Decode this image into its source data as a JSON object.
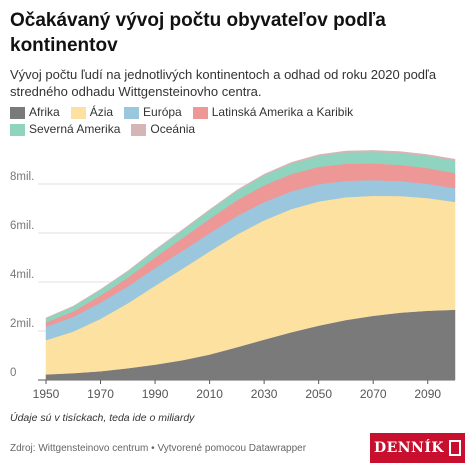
{
  "title": "Očakávaný vývoj počtu obyvateľov podľa kontinentov",
  "subtitle": "Vývoj počtu ľudí na jednotlivých kontinentoch a odhad od roku 2020 podľa stredného odhadu Wittgensteinovho centra.",
  "note": "Údaje sú v tisíckach, teda ide o miliardy",
  "source": "Zdroj: Wittgensteinovo centrum • Vytvorené pomocou Datawrapper",
  "logo": "DENNÍK",
  "chart_data": {
    "type": "area",
    "stacked": true,
    "title": "Očakávaný vývoj počtu obyvateľov podľa kontinentov",
    "x": [
      1950,
      1960,
      1970,
      1980,
      1990,
      2000,
      2010,
      2020,
      2030,
      2040,
      2050,
      2060,
      2070,
      2080,
      2090,
      2100
    ],
    "xticks": [
      1950,
      1970,
      1990,
      2010,
      2030,
      2050,
      2070,
      2090
    ],
    "yticks": [
      {
        "value": 0,
        "label": "0"
      },
      {
        "value": 2,
        "label": "2mil."
      },
      {
        "value": 4,
        "label": "4mil."
      },
      {
        "value": 6,
        "label": "6mil."
      },
      {
        "value": 8,
        "label": "8mil."
      }
    ],
    "ylim": [
      0,
      10
    ],
    "legend_position": "top",
    "series": [
      {
        "name": "Afrika",
        "color": "#7a7a7a",
        "values": [
          0.23,
          0.28,
          0.36,
          0.48,
          0.63,
          0.81,
          1.04,
          1.34,
          1.65,
          1.95,
          2.22,
          2.45,
          2.62,
          2.75,
          2.83,
          2.87
        ]
      },
      {
        "name": "Ázia",
        "color": "#fce1a0",
        "values": [
          1.4,
          1.7,
          2.14,
          2.65,
          3.22,
          3.73,
          4.21,
          4.6,
          4.87,
          5.03,
          5.07,
          5.01,
          4.9,
          4.76,
          4.6,
          4.4
        ]
      },
      {
        "name": "Európa",
        "color": "#9ac7de",
        "values": [
          0.55,
          0.6,
          0.66,
          0.69,
          0.72,
          0.73,
          0.74,
          0.75,
          0.74,
          0.72,
          0.7,
          0.67,
          0.64,
          0.61,
          0.58,
          0.56
        ]
      },
      {
        "name": "Latinská Amerika a Karibik",
        "color": "#ee9797",
        "values": [
          0.17,
          0.22,
          0.29,
          0.36,
          0.44,
          0.52,
          0.59,
          0.65,
          0.69,
          0.71,
          0.71,
          0.7,
          0.68,
          0.66,
          0.64,
          0.62
        ]
      },
      {
        "name": "Severná Amerika",
        "color": "#8fd4bf",
        "values": [
          0.17,
          0.2,
          0.23,
          0.25,
          0.28,
          0.31,
          0.34,
          0.37,
          0.4,
          0.42,
          0.44,
          0.46,
          0.47,
          0.48,
          0.49,
          0.5
        ]
      },
      {
        "name": "Oceánia",
        "color": "#d5b5b5",
        "values": [
          0.013,
          0.016,
          0.02,
          0.023,
          0.027,
          0.031,
          0.037,
          0.043,
          0.048,
          0.052,
          0.056,
          0.058,
          0.06,
          0.061,
          0.062,
          0.062
        ]
      }
    ]
  }
}
